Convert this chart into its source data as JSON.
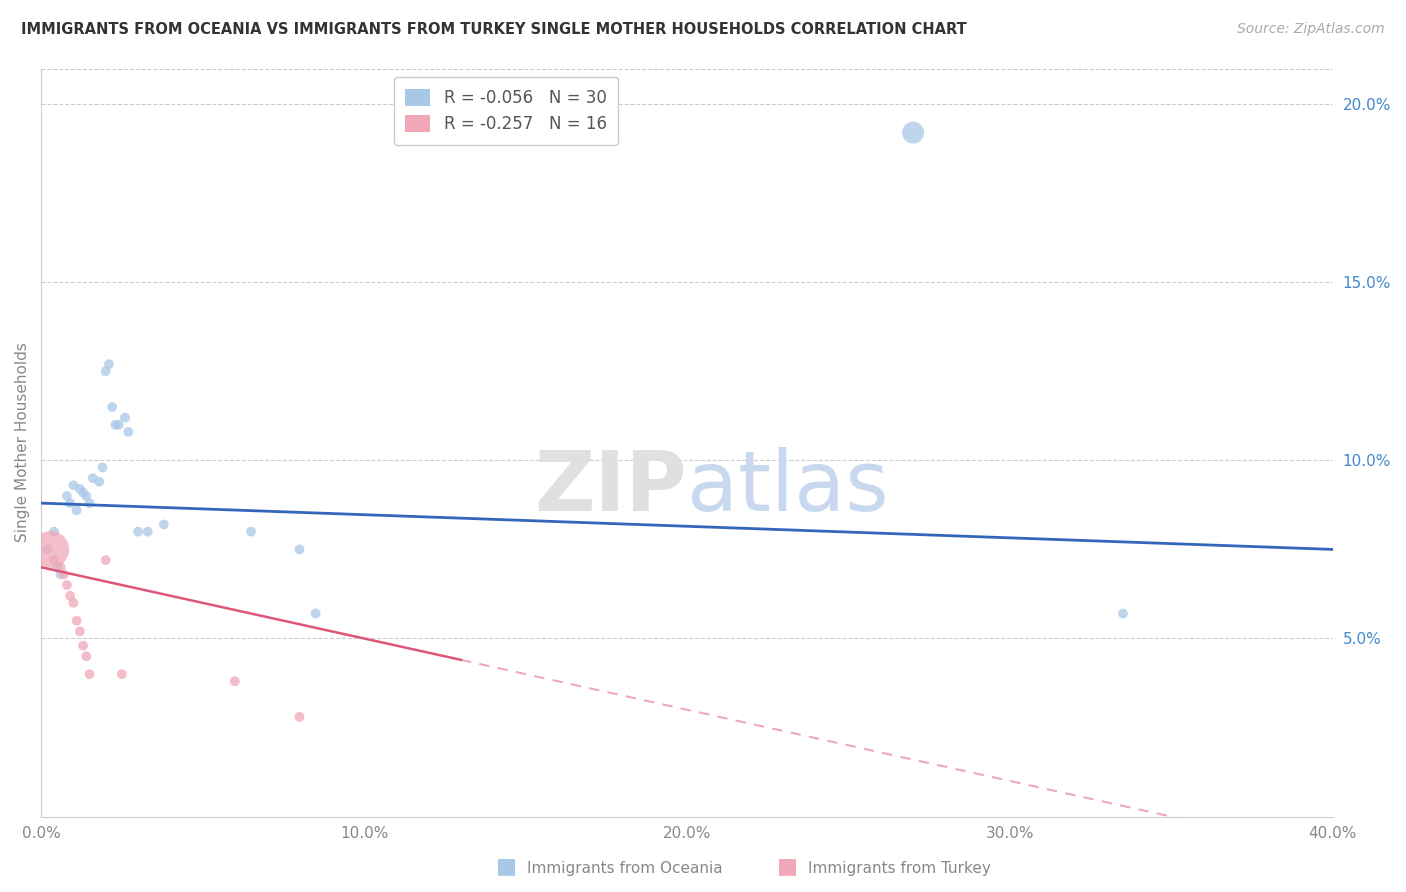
{
  "title": "IMMIGRANTS FROM OCEANIA VS IMMIGRANTS FROM TURKEY SINGLE MOTHER HOUSEHOLDS CORRELATION CHART",
  "source": "Source: ZipAtlas.com",
  "ylabel": "Single Mother Households",
  "xlabel": "",
  "xlim": [
    0.0,
    0.4
  ],
  "ylim": [
    0.0,
    0.21
  ],
  "xticks": [
    0.0,
    0.1,
    0.2,
    0.3,
    0.4
  ],
  "xticklabels": [
    "0.0%",
    "10.0%",
    "20.0%",
    "30.0%",
    "40.0%"
  ],
  "yticks_right": [
    0.05,
    0.1,
    0.15,
    0.2
  ],
  "ytickslabels_right": [
    "5.0%",
    "10.0%",
    "15.0%",
    "20.0%"
  ],
  "legend_oceania": {
    "R": "-0.056",
    "N": "30",
    "color": "#a8c8e8"
  },
  "legend_turkey": {
    "R": "-0.257",
    "N": "16",
    "color": "#f0a8b8"
  },
  "background_color": "#ffffff",
  "grid_color": "#cccccc",
  "oceania_color": "#a8c8e8",
  "turkey_color": "#f0a8b8",
  "oceania_line_color": "#3366bb",
  "turkey_line_color": "#dd5577",
  "oceania_scatter": [
    [
      0.002,
      0.075
    ],
    [
      0.004,
      0.08
    ],
    [
      0.005,
      0.07
    ],
    [
      0.006,
      0.068
    ],
    [
      0.008,
      0.09
    ],
    [
      0.009,
      0.088
    ],
    [
      0.01,
      0.093
    ],
    [
      0.011,
      0.086
    ],
    [
      0.012,
      0.092
    ],
    [
      0.013,
      0.091
    ],
    [
      0.014,
      0.09
    ],
    [
      0.015,
      0.088
    ],
    [
      0.016,
      0.095
    ],
    [
      0.018,
      0.094
    ],
    [
      0.019,
      0.098
    ],
    [
      0.02,
      0.125
    ],
    [
      0.021,
      0.127
    ],
    [
      0.022,
      0.115
    ],
    [
      0.023,
      0.11
    ],
    [
      0.024,
      0.11
    ],
    [
      0.026,
      0.112
    ],
    [
      0.027,
      0.108
    ],
    [
      0.03,
      0.08
    ],
    [
      0.033,
      0.08
    ],
    [
      0.038,
      0.082
    ],
    [
      0.065,
      0.08
    ],
    [
      0.08,
      0.075
    ],
    [
      0.085,
      0.057
    ],
    [
      0.27,
      0.192
    ],
    [
      0.335,
      0.057
    ]
  ],
  "oceania_sizes": [
    50,
    50,
    50,
    50,
    50,
    50,
    50,
    50,
    50,
    50,
    50,
    50,
    50,
    50,
    50,
    50,
    50,
    50,
    50,
    50,
    50,
    50,
    50,
    50,
    50,
    50,
    50,
    50,
    250,
    50
  ],
  "turkey_scatter": [
    [
      0.003,
      0.075
    ],
    [
      0.004,
      0.072
    ],
    [
      0.006,
      0.07
    ],
    [
      0.007,
      0.068
    ],
    [
      0.008,
      0.065
    ],
    [
      0.009,
      0.062
    ],
    [
      0.01,
      0.06
    ],
    [
      0.011,
      0.055
    ],
    [
      0.012,
      0.052
    ],
    [
      0.013,
      0.048
    ],
    [
      0.014,
      0.045
    ],
    [
      0.015,
      0.04
    ],
    [
      0.02,
      0.072
    ],
    [
      0.025,
      0.04
    ],
    [
      0.06,
      0.038
    ],
    [
      0.08,
      0.028
    ]
  ],
  "turkey_sizes": [
    700,
    50,
    50,
    50,
    50,
    50,
    50,
    50,
    50,
    50,
    50,
    50,
    50,
    50,
    50,
    50
  ]
}
